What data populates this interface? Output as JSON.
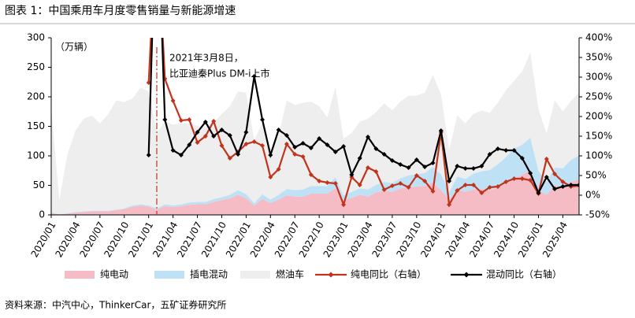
{
  "chart_data": {
    "type": "combo",
    "title": "图表 1：中国乘用车月度零售销量与新能源增速",
    "unit_label": "（万辆）",
    "annotations": [
      "2021年3月8日，",
      "比亚迪秦Plus DM-i上市"
    ],
    "source": "资料来源：中汽中心，ThinkerCar，五矿证券研究所",
    "categories": [
      "2020/01",
      null,
      null,
      "2020/04",
      null,
      null,
      "2020/07",
      null,
      null,
      "2020/10",
      null,
      null,
      "2021/01",
      null,
      null,
      "2021/04",
      null,
      null,
      "2021/07",
      null,
      null,
      "2021/10",
      null,
      null,
      "2022/01",
      null,
      null,
      "2022/04",
      null,
      null,
      "2022/07",
      null,
      null,
      "2022/10",
      null,
      null,
      "2023/01",
      null,
      null,
      "2023/04",
      null,
      null,
      "2023/07",
      null,
      null,
      "2023/10",
      null,
      null,
      "2024/01",
      null,
      null,
      "2024/04",
      null,
      null,
      "2024/07",
      null,
      null,
      "2024/10",
      null,
      null,
      "2025/01",
      null,
      null,
      "2025/04",
      null,
      null
    ],
    "ylim": [
      0,
      300
    ],
    "yticks": [
      0,
      50,
      100,
      150,
      200,
      250,
      300
    ],
    "y2lim": [
      -50,
      400
    ],
    "y2ticks": [
      {
        "value": -50,
        "label": "-50%"
      },
      {
        "value": 0,
        "label": "0%"
      },
      {
        "value": 50,
        "label": "50%"
      },
      {
        "value": 100,
        "label": "100%"
      },
      {
        "value": 150,
        "label": "150%"
      },
      {
        "value": 200,
        "label": "200%"
      },
      {
        "value": 250,
        "label": "250%"
      },
      {
        "value": 300,
        "label": "300%"
      },
      {
        "value": 350,
        "label": "350%"
      },
      {
        "value": 400,
        "label": "400%"
      }
    ],
    "series": [
      {
        "name": "纯电动",
        "type": "area",
        "color": "#f5bcc6",
        "values": [
          3,
          1,
          2,
          4,
          5,
          6,
          6,
          6,
          8,
          10,
          14,
          16,
          14,
          9,
          15,
          13,
          15,
          17,
          18,
          18,
          22,
          25,
          28,
          34,
          28,
          16,
          27,
          20,
          26,
          33,
          31,
          31,
          36,
          36,
          36,
          45,
          25,
          29,
          34,
          31,
          38,
          41,
          39,
          45,
          47,
          48,
          49,
          55,
          42,
          26,
          42,
          39,
          43,
          44,
          42,
          46,
          53,
          62,
          68,
          76,
          42,
          34,
          50,
          48,
          56,
          60
        ]
      },
      {
        "name": "插电混动",
        "type": "area",
        "color": "#bfe1f6",
        "values": [
          1,
          0,
          1,
          1,
          1,
          1,
          1,
          1,
          1,
          1,
          2,
          2,
          2,
          2,
          3,
          3,
          3,
          4,
          4,
          4,
          5,
          5,
          6,
          8,
          7,
          4,
          8,
          6,
          8,
          11,
          11,
          12,
          13,
          13,
          13,
          19,
          8,
          10,
          11,
          12,
          13,
          15,
          15,
          17,
          20,
          21,
          22,
          26,
          27,
          12,
          23,
          22,
          27,
          30,
          34,
          40,
          45,
          50,
          51,
          55,
          33,
          22,
          30,
          31,
          37,
          41
        ]
      },
      {
        "name": "燃油车",
        "type": "area",
        "color": "#eeeeee",
        "values": [
          177,
          24,
          100,
          138,
          157,
          161,
          148,
          163,
          185,
          180,
          181,
          198,
          193,
          128,
          140,
          137,
          137,
          134,
          129,
          126,
          130,
          141,
          150,
          167,
          172,
          106,
          122,
          78,
          101,
          150,
          144,
          147,
          143,
          135,
          116,
          153,
          96,
          100,
          113,
          120,
          123,
          133,
          123,
          130,
          135,
          133,
          136,
          156,
          135,
          72,
          104,
          94,
          101,
          103,
          97,
          104,
          113,
          115,
          124,
          144,
          104,
          82,
          114,
          96,
          100,
          107
        ]
      },
      {
        "name": "纯电同比（右轴）",
        "type": "line",
        "axis": "y2",
        "color": "#c0341d",
        "values": [
          null,
          null,
          null,
          null,
          null,
          null,
          null,
          null,
          null,
          null,
          null,
          null,
          286,
          700,
          296,
          240,
          190,
          192,
          134,
          150,
          188,
          126,
          94,
          110,
          130,
          136,
          126,
          46,
          66,
          130,
          104,
          98,
          52,
          36,
          32,
          30,
          -24,
          46,
          26,
          70,
          60,
          14,
          24,
          30,
          20,
          50,
          36,
          10,
          160,
          -24,
          12,
          26,
          26,
          6,
          20,
          22,
          34,
          42,
          42,
          38,
          4,
          92,
          54,
          34,
          22,
          24
        ]
      },
      {
        "name": "混动同比（右轴）",
        "type": "line",
        "axis": "y2",
        "color": "#000000",
        "values": [
          null,
          null,
          null,
          null,
          null,
          null,
          null,
          null,
          null,
          null,
          null,
          null,
          102,
          800,
          192,
          114,
          102,
          128,
          160,
          186,
          150,
          166,
          152,
          104,
          160,
          302,
          192,
          102,
          166,
          152,
          122,
          132,
          120,
          144,
          128,
          110,
          124,
          52,
          94,
          148,
          118,
          104,
          88,
          78,
          70,
          90,
          72,
          82,
          164,
          36,
          74,
          68,
          68,
          74,
          104,
          118,
          114,
          114,
          94,
          56,
          6,
          46,
          16,
          22,
          26,
          26
        ]
      }
    ]
  }
}
